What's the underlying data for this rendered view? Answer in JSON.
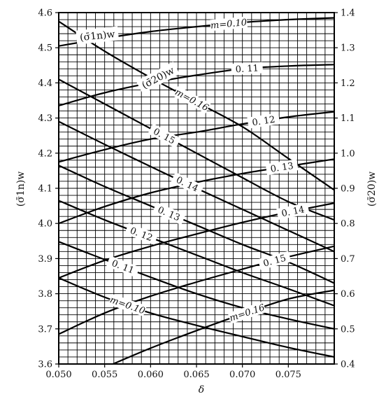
{
  "chart_data": {
    "type": "line",
    "title": "",
    "xlabel": "δ",
    "ylabel_left": "(σ̄1n)w",
    "ylabel_right": "(σ̄20)w",
    "xlim": [
      0.05,
      0.08
    ],
    "ylim_left": [
      3.6,
      4.6
    ],
    "ylim_right": [
      0.4,
      1.4
    ],
    "grid": true,
    "x_ticks": [
      "0.050",
      "0.055",
      "0.060",
      "0.065",
      "0.070",
      "0.075"
    ],
    "x_tick_values": [
      0.05,
      0.055,
      0.06,
      0.065,
      0.07,
      0.075
    ],
    "y_left_ticks": [
      "3.6",
      "3.7",
      "3.8",
      "3.9",
      "4.0",
      "4.1",
      "4.2",
      "4.3",
      "4.4",
      "4.5",
      "4.6"
    ],
    "y_left_tick_values": [
      3.6,
      3.7,
      3.8,
      3.9,
      4.0,
      4.1,
      4.2,
      4.3,
      4.4,
      4.5,
      4.6
    ],
    "y_right_ticks": [
      "0.4",
      "0.5",
      "0.6",
      "0.7",
      "0.8",
      "0.9",
      "1.0",
      "1.1",
      "1.2",
      "1.3",
      "1.4"
    ],
    "y_right_tick_values": [
      0.4,
      0.5,
      0.6,
      0.7,
      0.8,
      0.9,
      1.0,
      1.1,
      1.2,
      1.3,
      1.4
    ],
    "group_labels": {
      "sigma1n": "(σ̄1n)w",
      "sigma20": "(σ̄20)w"
    },
    "series": [
      {
        "group": "sigma1n",
        "axis": "left",
        "label": "m=0.10",
        "label_x": 0.0685,
        "x": [
          0.05,
          0.055,
          0.06,
          0.065,
          0.07,
          0.075,
          0.08
        ],
        "y": [
          4.505,
          4.527,
          4.546,
          4.56,
          4.572,
          4.58,
          4.585
        ]
      },
      {
        "group": "sigma1n",
        "axis": "left",
        "label": "0. 11",
        "label_x": 0.0705,
        "x": [
          0.05,
          0.055,
          0.06,
          0.065,
          0.07,
          0.075,
          0.08
        ],
        "y": [
          4.335,
          4.372,
          4.4,
          4.422,
          4.44,
          4.448,
          4.452
        ]
      },
      {
        "group": "sigma1n",
        "axis": "left",
        "label": "0. 12",
        "label_x": 0.0723,
        "x": [
          0.05,
          0.055,
          0.06,
          0.065,
          0.07,
          0.075,
          0.08
        ],
        "y": [
          4.175,
          4.21,
          4.24,
          4.26,
          4.283,
          4.303,
          4.318
        ]
      },
      {
        "group": "sigma1n",
        "axis": "left",
        "label": "0. 13",
        "label_x": 0.0743,
        "x": [
          0.05,
          0.055,
          0.06,
          0.065,
          0.07,
          0.075,
          0.08
        ],
        "y": [
          4.0,
          4.048,
          4.087,
          4.117,
          4.142,
          4.163,
          4.183
        ]
      },
      {
        "group": "sigma1n",
        "axis": "left",
        "label": "0. 14",
        "label_x": 0.0755,
        "x": [
          0.05,
          0.055,
          0.06,
          0.065,
          0.07,
          0.075,
          0.08
        ],
        "y": [
          3.845,
          3.895,
          3.935,
          3.97,
          4.003,
          4.032,
          4.058
        ]
      },
      {
        "group": "sigma1n",
        "axis": "left",
        "label": "0. 15",
        "label_x": 0.0735,
        "x": [
          0.05,
          0.055,
          0.06,
          0.065,
          0.07,
          0.075,
          0.08
        ],
        "y": [
          3.685,
          3.745,
          3.793,
          3.833,
          3.87,
          3.905,
          3.935
        ]
      },
      {
        "group": "sigma1n",
        "axis": "left",
        "label": "m=0.16",
        "label_x": 0.0705,
        "x": [
          0.0505,
          0.055,
          0.06,
          0.065,
          0.07,
          0.075,
          0.08
        ],
        "y": [
          3.54,
          3.59,
          3.645,
          3.695,
          3.742,
          3.785,
          3.81
        ]
      },
      {
        "group": "sigma20",
        "axis": "right",
        "label": "m=0.16",
        "label_x": 0.0645,
        "x": [
          0.05,
          0.055,
          0.06,
          0.065,
          0.07,
          0.075,
          0.08
        ],
        "y": [
          1.375,
          1.29,
          1.215,
          1.145,
          1.075,
          0.985,
          0.895
        ]
      },
      {
        "group": "sigma20",
        "axis": "right",
        "label": "0. 15",
        "label_x": 0.0615,
        "x": [
          0.05,
          0.055,
          0.06,
          0.065,
          0.07,
          0.075,
          0.08
        ],
        "y": [
          1.21,
          1.14,
          1.07,
          1.0,
          0.93,
          0.862,
          0.81
        ]
      },
      {
        "group": "sigma20",
        "axis": "right",
        "label": "0. 14",
        "label_x": 0.064,
        "x": [
          0.05,
          0.055,
          0.06,
          0.065,
          0.07,
          0.075,
          0.08
        ],
        "y": [
          1.09,
          1.025,
          0.962,
          0.9,
          0.84,
          0.78,
          0.72
        ]
      },
      {
        "group": "sigma20",
        "axis": "right",
        "label": "0. 13",
        "label_x": 0.062,
        "x": [
          0.05,
          0.055,
          0.06,
          0.065,
          0.07,
          0.075,
          0.08
        ],
        "y": [
          0.965,
          0.905,
          0.85,
          0.795,
          0.74,
          0.69,
          0.63
        ]
      },
      {
        "group": "sigma20",
        "axis": "right",
        "label": "0. 12",
        "label_x": 0.059,
        "x": [
          0.05,
          0.055,
          0.06,
          0.065,
          0.07,
          0.075,
          0.08
        ],
        "y": [
          0.865,
          0.81,
          0.76,
          0.71,
          0.66,
          0.614,
          0.566
        ]
      },
      {
        "group": "sigma20",
        "axis": "right",
        "label": "0. 11",
        "label_x": 0.057,
        "x": [
          0.05,
          0.055,
          0.06,
          0.065,
          0.07,
          0.075,
          0.08
        ],
        "y": [
          0.748,
          0.697,
          0.647,
          0.6,
          0.56,
          0.528,
          0.5
        ]
      },
      {
        "group": "sigma20",
        "axis": "right",
        "label": "m=0.10",
        "label_x": 0.0575,
        "x": [
          0.05,
          0.055,
          0.06,
          0.065,
          0.07,
          0.075,
          0.08
        ],
        "y": [
          0.645,
          0.59,
          0.545,
          0.51,
          0.478,
          0.447,
          0.42
        ]
      }
    ]
  }
}
